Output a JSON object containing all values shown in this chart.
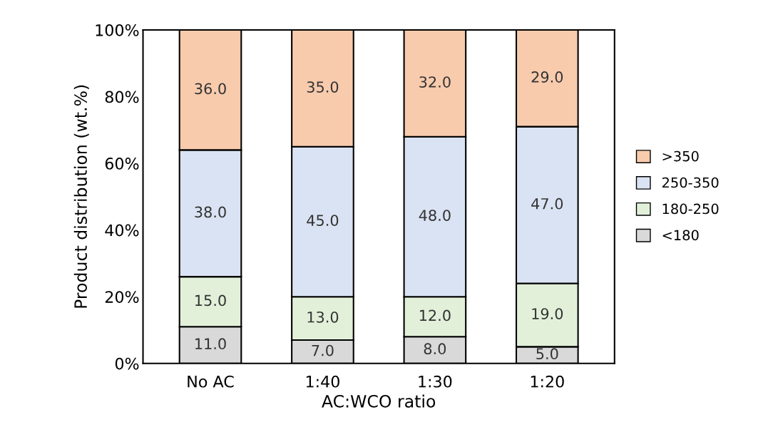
{
  "chart_data": {
    "type": "bar",
    "stacked": true,
    "xlabel": "AC:WCO ratio",
    "ylabel": "Product distribution (wt.%)",
    "categories": [
      "No AC",
      "1:40",
      "1:30",
      "1:20"
    ],
    "series": [
      {
        "name": "<180",
        "color": "#d9d9d9",
        "values": [
          11,
          7,
          8,
          5
        ],
        "value_labels": [
          "11.0",
          "7.0",
          "8.0",
          "5.0"
        ]
      },
      {
        "name": "180-250",
        "color": "#e2f0d9",
        "values": [
          15,
          13,
          12,
          19
        ],
        "value_labels": [
          "15.0",
          "13.0",
          "12.0",
          "19.0"
        ]
      },
      {
        "name": "250-350",
        "color": "#dae3f3",
        "values": [
          38,
          45,
          48,
          47
        ],
        "value_labels": [
          "38.0",
          "45.0",
          "48.0",
          "47.0"
        ]
      },
      {
        "name": ">350",
        "color": "#f8cbad",
        "values": [
          36,
          35,
          32,
          29
        ],
        "value_labels": [
          "36.0",
          "35.0",
          "32.0",
          "29.0"
        ]
      }
    ],
    "ylim": [
      0,
      100
    ],
    "yticks": [
      {
        "value": 0,
        "label": "0%"
      },
      {
        "value": 20,
        "label": "20%"
      },
      {
        "value": 40,
        "label": "40%"
      },
      {
        "value": 60,
        "label": "60%"
      },
      {
        "value": 80,
        "label": "80%"
      },
      {
        "value": 100,
        "label": "100%"
      }
    ],
    "grid": false,
    "legend": "right"
  }
}
